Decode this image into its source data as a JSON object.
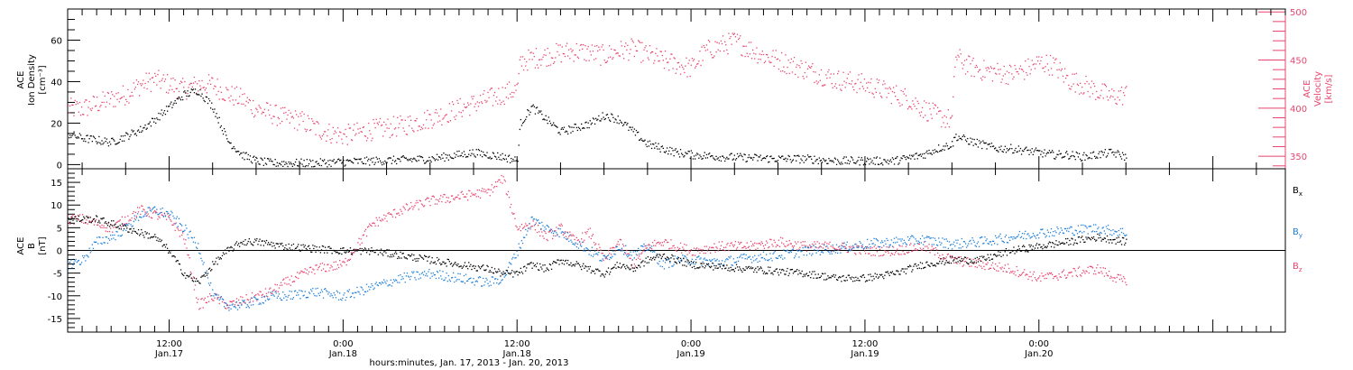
{
  "chart_data": [
    {
      "type": "scatter",
      "panel": "top",
      "x_axis": {
        "range_hours": [
          5,
          89
        ],
        "tick_labels": [
          {
            "hour": 12,
            "time": "12:00",
            "date": "Jan.17"
          },
          {
            "hour": 24,
            "time": "0:00",
            "date": "Jan.18"
          },
          {
            "hour": 36,
            "time": "12:00",
            "date": "Jan.18"
          },
          {
            "hour": 48,
            "time": "0:00",
            "date": "Jan.19"
          },
          {
            "hour": 60,
            "time": "12:00",
            "date": "Jan.19"
          },
          {
            "hour": 72,
            "time": "0:00",
            "date": "Jan.20"
          }
        ],
        "xlabel": "hours:minutes, Jan. 17, 2013 - Jan. 20, 2013"
      },
      "left_axis": {
        "label_lines": [
          "ACE",
          "Ion Density",
          "[cm⁻³]"
        ],
        "ylim": [
          -2,
          75
        ],
        "ticks": [
          0,
          20,
          40,
          60
        ],
        "color": "#000000"
      },
      "right_axis": {
        "label_lines": [
          "ACE",
          "Velocity",
          "[km/s]"
        ],
        "ylim": [
          337,
          503
        ],
        "ticks": [
          350,
          400,
          450,
          500
        ],
        "color": "#e8456e"
      },
      "series": [
        {
          "axis": "left",
          "color": "#000000",
          "x": [
            5,
            6,
            7,
            8,
            9,
            10,
            11,
            12,
            13,
            14,
            15,
            16,
            17,
            18,
            19,
            20,
            22,
            24,
            26,
            28,
            30,
            31,
            32,
            33,
            34,
            35,
            35.5,
            36,
            36.2,
            37,
            38,
            39,
            40,
            41,
            42,
            43,
            44,
            45,
            46,
            47,
            48,
            50,
            52,
            54,
            56,
            58,
            60,
            62,
            64,
            65,
            66,
            66.2,
            67,
            68,
            69,
            70,
            71,
            72,
            73,
            74,
            75,
            76,
            77,
            78
          ],
          "y": [
            15,
            13,
            12,
            11,
            14,
            17,
            22,
            28,
            34,
            36,
            28,
            12,
            5,
            2,
            1,
            1,
            1,
            1.5,
            2,
            2.5,
            3,
            4,
            5,
            6,
            5,
            4,
            3,
            2,
            20,
            28,
            22,
            16,
            18,
            20,
            24,
            22,
            16,
            10,
            8,
            6,
            5,
            4,
            3.5,
            3,
            3,
            2,
            2,
            2,
            5,
            8,
            10,
            14,
            12,
            10,
            8,
            8,
            7,
            6,
            5,
            5,
            4,
            5,
            6,
            4
          ]
        },
        {
          "axis": "right",
          "color": "#e8456e",
          "x": [
            5,
            6,
            7,
            8,
            9,
            10,
            11,
            12,
            13,
            14,
            15,
            16,
            17,
            18,
            19,
            20,
            21,
            22,
            23,
            24,
            26,
            28,
            30,
            32,
            34,
            35,
            35.5,
            36,
            36.2,
            37,
            38,
            39,
            40,
            41,
            42,
            43,
            44,
            45,
            46,
            47,
            48,
            49,
            50,
            51,
            52,
            53,
            54,
            55,
            56,
            57,
            58,
            59,
            60,
            61,
            62,
            63,
            64,
            65,
            65.5,
            66,
            66.2,
            67,
            68,
            69,
            70,
            71,
            72,
            73,
            74,
            75,
            76,
            77,
            78
          ],
          "y": [
            400,
            400,
            405,
            410,
            415,
            425,
            430,
            425,
            420,
            425,
            425,
            415,
            410,
            400,
            395,
            390,
            388,
            380,
            375,
            372,
            378,
            382,
            390,
            400,
            410,
            415,
            418,
            420,
            448,
            452,
            455,
            458,
            460,
            458,
            455,
            460,
            462,
            456,
            450,
            446,
            442,
            460,
            465,
            470,
            462,
            455,
            450,
            445,
            440,
            435,
            430,
            428,
            425,
            420,
            415,
            410,
            400,
            392,
            390,
            388,
            455,
            445,
            440,
            438,
            436,
            440,
            448,
            445,
            430,
            425,
            418,
            412,
            415
          ]
        }
      ]
    },
    {
      "type": "scatter",
      "panel": "bottom",
      "left_axis": {
        "label_lines": [
          "ACE",
          "B",
          "[nT]"
        ],
        "ylim": [
          -18,
          18
        ],
        "ticks": [
          -15,
          -10,
          -5,
          0,
          5,
          10,
          15
        ],
        "color": "#000000"
      },
      "zero_line": true,
      "legend_entries": [
        {
          "main": "B",
          "sub": "x",
          "color": "#000000"
        },
        {
          "main": "B",
          "sub": "y",
          "color": "#1f7fd8"
        },
        {
          "main": "B",
          "sub": "z",
          "color": "#e8456e"
        }
      ],
      "series": [
        {
          "name": "Bx",
          "color": "#000000",
          "x": [
            5,
            6,
            7,
            8,
            9,
            10,
            11,
            12,
            13,
            14,
            15,
            16,
            17,
            18,
            19,
            20,
            22,
            24,
            26,
            28,
            30,
            32,
            34,
            35,
            36,
            37,
            38,
            39,
            40,
            41,
            42,
            43,
            44,
            45,
            46,
            47,
            48,
            50,
            52,
            54,
            56,
            58,
            60,
            62,
            64,
            66,
            68,
            70,
            72,
            74,
            76,
            78
          ],
          "y": [
            7,
            7,
            7,
            6,
            5,
            4,
            3,
            0,
            -5,
            -7,
            -3,
            0,
            2,
            2,
            1.5,
            1,
            0.5,
            0,
            0,
            -1,
            -2,
            -3,
            -4,
            -5,
            -5,
            -3,
            -4,
            -2,
            -3,
            -4,
            -5,
            -3,
            -4,
            -2,
            -1,
            -2,
            -3,
            -3.5,
            -4,
            -4.5,
            -5,
            -6,
            -6,
            -5,
            -3,
            -2,
            -2,
            0,
            1,
            2,
            3,
            2
          ]
        },
        {
          "name": "By",
          "color": "#1f7fd8",
          "x": [
            5,
            6,
            7,
            8,
            9,
            10,
            11,
            12,
            13,
            14,
            15,
            16,
            17,
            18,
            19,
            20,
            22,
            24,
            26,
            28,
            30,
            32,
            34,
            35,
            36,
            37,
            38,
            39,
            40,
            41,
            42,
            43,
            44,
            45,
            46,
            47,
            48,
            50,
            52,
            54,
            56,
            58,
            60,
            62,
            64,
            66,
            68,
            70,
            72,
            74,
            76,
            78
          ],
          "y": [
            -3,
            -2,
            2,
            3,
            5,
            8,
            9,
            8,
            5,
            1,
            -10,
            -12,
            -12,
            -11,
            -10,
            -10,
            -9,
            -10,
            -8,
            -6,
            -5,
            -6,
            -7,
            -6,
            0,
            7,
            5,
            4,
            2,
            0,
            -2,
            1,
            -1,
            1,
            -3,
            -2,
            -2,
            -2.5,
            -1.5,
            -1,
            0,
            0.5,
            1.5,
            2,
            2.5,
            1.5,
            2,
            3,
            4,
            4.5,
            5,
            4
          ]
        },
        {
          "name": "Bz",
          "color": "#e8456e",
          "x": [
            5,
            6,
            7,
            8,
            9,
            10,
            11,
            12,
            13,
            14,
            15,
            16,
            17,
            18,
            19,
            20,
            22,
            24,
            26,
            28,
            30,
            32,
            34,
            35,
            36,
            37,
            38,
            39,
            40,
            41,
            42,
            43,
            44,
            45,
            46,
            47,
            48,
            50,
            52,
            54,
            56,
            58,
            60,
            62,
            64,
            66,
            68,
            70,
            72,
            74,
            76,
            78
          ],
          "y": [
            7,
            7,
            6,
            5,
            7,
            9,
            8,
            7,
            3,
            -12,
            -10,
            -12,
            -11,
            -10,
            -9,
            -7,
            -4,
            -3,
            6,
            9,
            11,
            12,
            13,
            16,
            5,
            6,
            3,
            5,
            2,
            4,
            -2,
            2,
            -3,
            1,
            2,
            1,
            0,
            1,
            1,
            2,
            1,
            1,
            0,
            0,
            1,
            -2,
            -3,
            -4,
            -6,
            -5,
            -4,
            -7
          ]
        }
      ]
    }
  ]
}
